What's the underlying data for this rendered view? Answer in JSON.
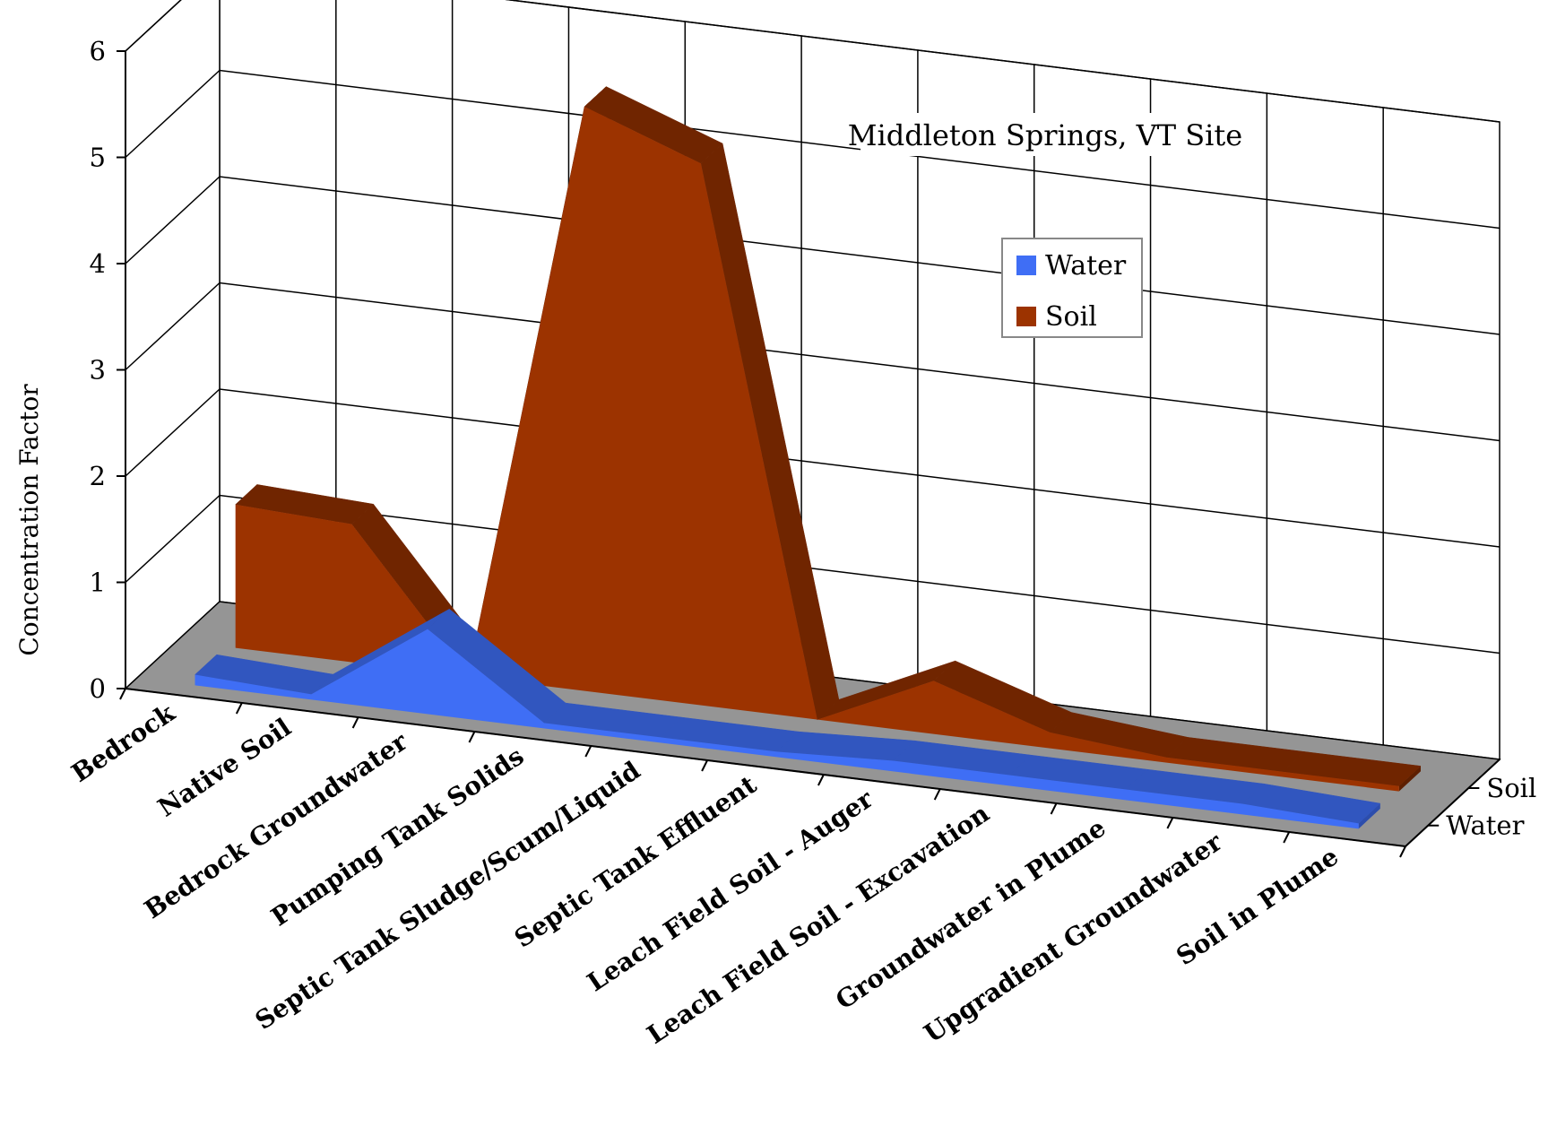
{
  "chart_data": {
    "type": "area",
    "title": "Middleton Springs, VT Site",
    "xlabel": "",
    "ylabel": "Concentration Factor",
    "ylim": [
      0,
      6
    ],
    "yticks": [
      "0",
      "1",
      "2",
      "3",
      "4",
      "5",
      "6"
    ],
    "categories": [
      "Bedrock",
      "Native Soil",
      "Bedrock Groundwater",
      "Pumping Tank Solids",
      "Septic Tank Sludge/Scum/Liquid",
      "Septic Tank Effluent",
      "Leach Field Soil - Auger",
      "Leach Field Soil - Excavation",
      "Groundwater in Plume",
      "Upgradient Groundwater",
      "Soil in Plume"
    ],
    "depth_labels": [
      "Soil",
      "Water"
    ],
    "series": [
      {
        "name": "Water",
        "color": "#3f6ef5",
        "values": [
          0.1,
          0.05,
          0.8,
          0.05,
          0.05,
          0.05,
          0.1,
          0.1,
          0.1,
          0.1,
          0.05
        ]
      },
      {
        "name": "Soil",
        "color": "#9c3300",
        "values": [
          1.35,
          1.3,
          0,
          5.5,
          5.1,
          0,
          0.5,
          0.15,
          0.05,
          0.05,
          0.05
        ]
      }
    ],
    "legend": {
      "position": "right",
      "items": [
        "Water",
        "Soil"
      ]
    },
    "grid": true
  }
}
